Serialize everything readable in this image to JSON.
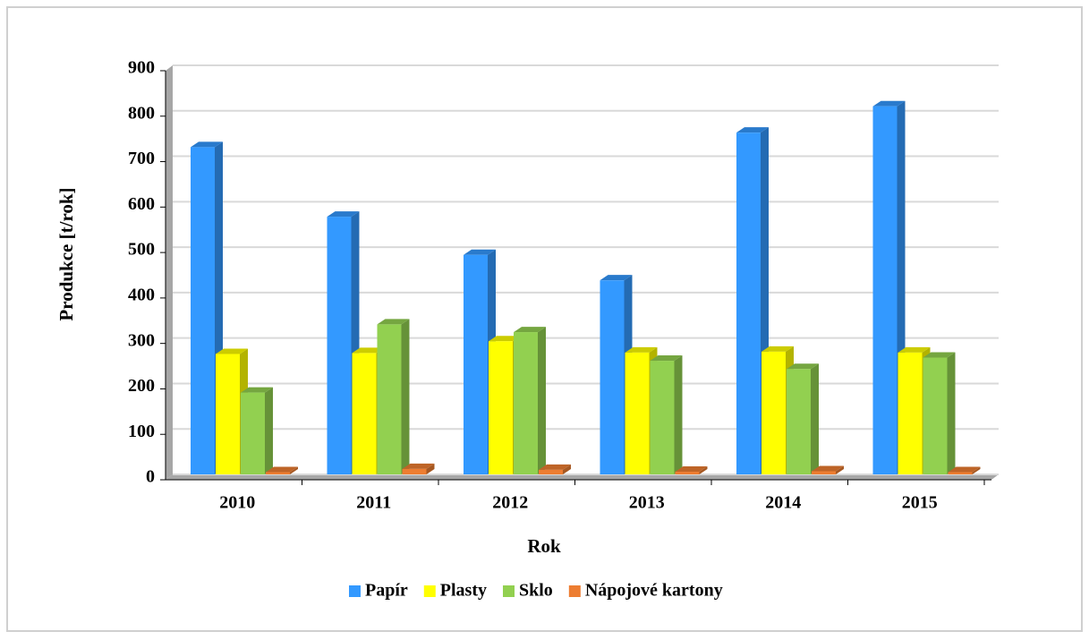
{
  "chart_data": {
    "type": "bar3d",
    "xlabel": "Rok",
    "ylabel": "Produkce [t/rok]",
    "categories": [
      "2010",
      "2011",
      "2012",
      "2013",
      "2014",
      "2015"
    ],
    "series": [
      {
        "name": "Papír",
        "color": "#3399ff",
        "values": [
          720,
          567,
          483,
          427,
          752,
          810
        ]
      },
      {
        "name": "Plasty",
        "color": "#ffff00",
        "values": [
          265,
          267,
          293,
          268,
          270,
          268
        ]
      },
      {
        "name": "Sklo",
        "color": "#92d050",
        "values": [
          180,
          330,
          313,
          250,
          232,
          257
        ]
      },
      {
        "name": "Nápojové kartony",
        "color": "#ed7d31",
        "values": [
          5,
          12,
          10,
          6,
          7,
          5
        ]
      }
    ],
    "ylim": [
      0,
      900
    ],
    "yticks": [
      0,
      100,
      200,
      300,
      400,
      500,
      600,
      700,
      800,
      900
    ],
    "grid": true,
    "legend": "bottom"
  }
}
